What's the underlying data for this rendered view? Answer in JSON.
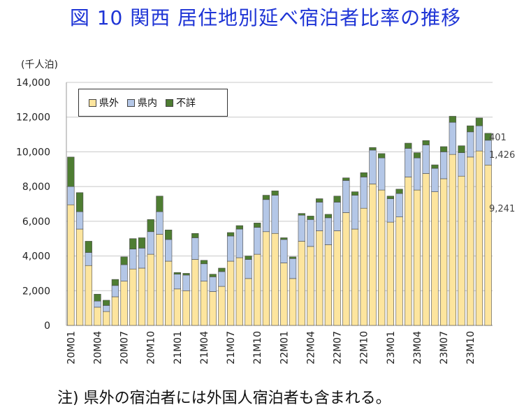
{
  "title": "図 10  関西 居住地別延べ宿泊者比率の推移",
  "unit_label": "(千人泊)",
  "note": "注) 県外の宿泊者には外国人宿泊者も含まれる。",
  "legend": [
    {
      "name": "県外",
      "color": "#fde59e"
    },
    {
      "name": "県内",
      "color": "#b4c7e7"
    },
    {
      "name": "不詳",
      "color": "#4e7d32"
    }
  ],
  "last_bar_labels": {
    "unknown": "401",
    "in_pref": "1,426",
    "out_pref": "9,241"
  },
  "chart_data": {
    "type": "bar",
    "stacked": true,
    "ylabel": "(千人泊)",
    "ylim": [
      0,
      14000
    ],
    "y_ticks": [
      "0",
      "2,000",
      "4,000",
      "6,000",
      "8,000",
      "10,000",
      "12,000",
      "14,000"
    ],
    "y_tick_values": [
      0,
      2000,
      4000,
      6000,
      8000,
      10000,
      12000,
      14000
    ],
    "grid": "horizontal",
    "legend_position": "top-left",
    "categories": [
      "20M01",
      "20M02",
      "20M03",
      "20M04",
      "20M05",
      "20M06",
      "20M07",
      "20M08",
      "20M09",
      "20M10",
      "20M11",
      "20M12",
      "21M01",
      "21M02",
      "21M03",
      "21M04",
      "21M05",
      "21M06",
      "21M07",
      "21M08",
      "21M09",
      "21M10",
      "21M11",
      "21M12",
      "22M01",
      "22M02",
      "22M03",
      "22M04",
      "22M05",
      "22M06",
      "22M07",
      "22M08",
      "22M09",
      "22M10",
      "22M11",
      "22M12",
      "23M01",
      "23M02",
      "23M03",
      "23M04",
      "23M05",
      "23M06",
      "23M07",
      "23M08",
      "23M09",
      "23M10",
      "23M11",
      "23M12"
    ],
    "tick_labels": [
      "20M01",
      "20M04",
      "20M07",
      "20M10",
      "21M01",
      "21M04",
      "21M07",
      "21M10",
      "22M01",
      "22M04",
      "22M07",
      "22M10",
      "23M01",
      "23M04",
      "23M07",
      "23M10"
    ],
    "series": [
      {
        "name": "県外",
        "color": "#fde59e",
        "values": [
          6950,
          5550,
          3450,
          1050,
          800,
          1650,
          2550,
          3250,
          3300,
          4100,
          5250,
          3700,
          2100,
          2000,
          3800,
          2550,
          1950,
          2250,
          3700,
          3900,
          2700,
          4100,
          5400,
          5300,
          3600,
          2700,
          4850,
          4550,
          5450,
          4650,
          5450,
          6500,
          5550,
          6750,
          8150,
          7800,
          5950,
          6250,
          8550,
          7800,
          8750,
          7700,
          8450,
          9850,
          8600,
          9700,
          10050,
          9241
        ]
      },
      {
        "name": "県内",
        "color": "#b4c7e7",
        "values": [
          1050,
          1000,
          750,
          350,
          350,
          650,
          950,
          1150,
          1150,
          1300,
          1300,
          1250,
          850,
          900,
          1250,
          1000,
          850,
          850,
          1450,
          1650,
          1100,
          1550,
          1850,
          2200,
          1350,
          1150,
          1500,
          1550,
          1650,
          1550,
          1650,
          1850,
          1950,
          1800,
          1950,
          1850,
          1350,
          1350,
          1650,
          1850,
          1650,
          1350,
          1550,
          1850,
          1350,
          1450,
          1450,
          1426
        ]
      },
      {
        "name": "不詳",
        "color": "#4e7d32",
        "values": [
          1700,
          1100,
          650,
          400,
          300,
          350,
          450,
          600,
          600,
          700,
          900,
          550,
          100,
          100,
          250,
          200,
          150,
          200,
          200,
          200,
          200,
          250,
          250,
          250,
          100,
          100,
          100,
          200,
          200,
          200,
          350,
          150,
          200,
          250,
          150,
          250,
          150,
          250,
          300,
          300,
          250,
          200,
          300,
          350,
          400,
          350,
          450,
          401
        ]
      }
    ]
  }
}
